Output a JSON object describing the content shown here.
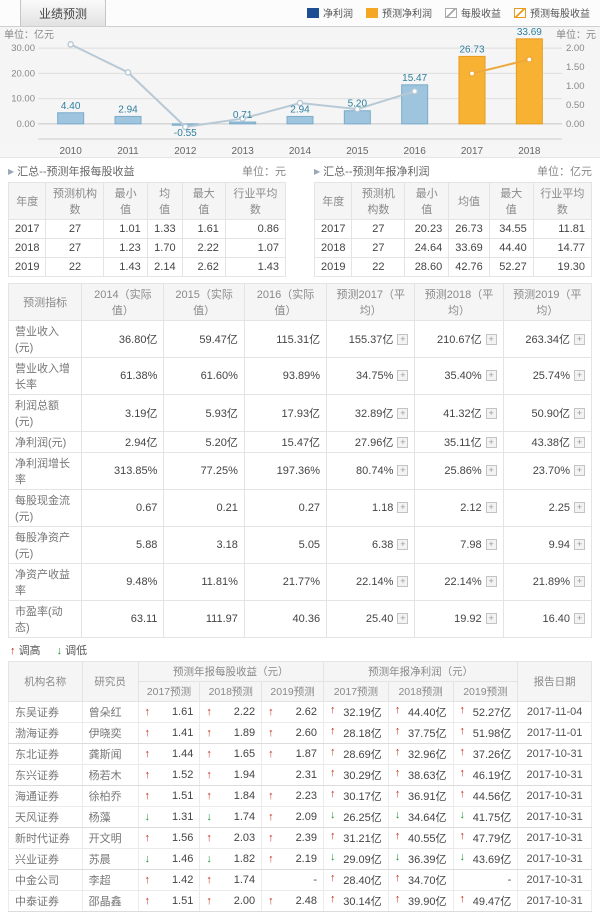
{
  "tab": {
    "label": "业绩预测"
  },
  "legend": [
    {
      "label": "净利润",
      "type": "bar",
      "color": "#1d4e94"
    },
    {
      "label": "预测净利润",
      "type": "bar",
      "color": "#f5a623"
    },
    {
      "label": "每股收益",
      "type": "line",
      "color": "#a9a9a9"
    },
    {
      "label": "预测每股收益",
      "type": "line",
      "color": "#e89c1e"
    }
  ],
  "chart_data": {
    "type": "bar+line combo",
    "categories": [
      "2010",
      "2011",
      "2012",
      "2013",
      "2014",
      "2015",
      "2016",
      "2017",
      "2018"
    ],
    "series": [
      {
        "name": "净利润",
        "type": "bar",
        "axis": "left",
        "color": "#9ec4de",
        "border": "#7aaccb",
        "values": [
          4.4,
          2.94,
          -0.55,
          0.71,
          2.94,
          5.2,
          15.47,
          null,
          null
        ]
      },
      {
        "name": "预测净利润",
        "type": "bar",
        "axis": "left",
        "color": "#f7b133",
        "border": "#e89c1e",
        "values": [
          null,
          null,
          null,
          null,
          null,
          null,
          null,
          26.73,
          33.69
        ]
      },
      {
        "name": "每股收益",
        "type": "line",
        "axis": "right",
        "color": "#b8c9d6",
        "values": [
          2.1,
          1.36,
          -0.08,
          0.14,
          0.55,
          0.39,
          0.86,
          null,
          null
        ]
      },
      {
        "name": "预测每股收益",
        "type": "line",
        "axis": "right",
        "color": "#eda93b",
        "values": [
          null,
          null,
          null,
          null,
          null,
          null,
          null,
          1.33,
          1.7
        ]
      }
    ],
    "bar_labels": [
      "4.40",
      "2.94",
      "-0.55",
      "0.71",
      "2.94",
      "5.20",
      "15.47",
      "26.73",
      "33.69"
    ],
    "left_axis": {
      "unit": "单位：亿元",
      "ticks": [
        0,
        10,
        20,
        30
      ],
      "min": -6,
      "max": 36
    },
    "right_axis": {
      "unit": "单位：元",
      "ticks": [
        0,
        0.5,
        1,
        1.5,
        2
      ],
      "min": -0.4,
      "max": 2.4
    },
    "grid": true,
    "legend_position": "top-right",
    "label_color": "#2e7f9f"
  },
  "eps_summary": {
    "title": "汇总--预测年报每股收益",
    "unit": "单位：元",
    "headers": [
      "年度",
      "预测机构数",
      "最小值",
      "均值",
      "最大值",
      "行业平均数"
    ],
    "rows": [
      [
        "2017",
        "27",
        "1.01",
        "1.33",
        "1.61",
        "0.86"
      ],
      [
        "2018",
        "27",
        "1.23",
        "1.70",
        "2.22",
        "1.07"
      ],
      [
        "2019",
        "22",
        "1.43",
        "2.14",
        "2.62",
        "1.43"
      ]
    ]
  },
  "np_summary": {
    "title": "汇总--预测年报净利润",
    "unit": "单位：亿元",
    "headers": [
      "年度",
      "预测机构数",
      "最小值",
      "均值",
      "最大值",
      "行业平均数"
    ],
    "rows": [
      [
        "2017",
        "27",
        "20.23",
        "26.73",
        "34.55",
        "11.81"
      ],
      [
        "2018",
        "27",
        "24.64",
        "33.69",
        "44.40",
        "14.77"
      ],
      [
        "2019",
        "22",
        "28.60",
        "42.76",
        "52.27",
        "19.30"
      ]
    ]
  },
  "indicators": {
    "headers": [
      "预测指标",
      "2014（实际值）",
      "2015（实际值）",
      "2016（实际值）",
      "预测2017（平均）",
      "预测2018（平均）",
      "预测2019（平均）"
    ],
    "expand_label": "+",
    "rows": [
      {
        "label": "营业收入(元)",
        "actual": [
          "36.80亿",
          "59.47亿",
          "115.31亿"
        ],
        "forecast": [
          "155.37亿",
          "210.67亿",
          "263.34亿"
        ]
      },
      {
        "label": "营业收入增长率",
        "actual": [
          "61.38%",
          "61.60%",
          "93.89%"
        ],
        "forecast": [
          "34.75%",
          "35.40%",
          "25.74%"
        ]
      },
      {
        "label": "利润总额(元)",
        "actual": [
          "3.19亿",
          "5.93亿",
          "17.93亿"
        ],
        "forecast": [
          "32.89亿",
          "41.32亿",
          "50.90亿"
        ]
      },
      {
        "label": "净利润(元)",
        "actual": [
          "2.94亿",
          "5.20亿",
          "15.47亿"
        ],
        "forecast": [
          "27.96亿",
          "35.11亿",
          "43.38亿"
        ]
      },
      {
        "label": "净利润增长率",
        "actual": [
          "313.85%",
          "77.25%",
          "197.36%"
        ],
        "forecast": [
          "80.74%",
          "25.86%",
          "23.70%"
        ]
      },
      {
        "label": "每股现金流(元)",
        "actual": [
          "0.67",
          "0.21",
          "0.27"
        ],
        "forecast": [
          "1.18",
          "2.12",
          "2.25"
        ]
      },
      {
        "label": "每股净资产(元)",
        "actual": [
          "5.88",
          "3.18",
          "5.05"
        ],
        "forecast": [
          "6.38",
          "7.98",
          "9.94"
        ]
      },
      {
        "label": "净资产收益率",
        "actual": [
          "9.48%",
          "11.81%",
          "21.77%"
        ],
        "forecast": [
          "22.14%",
          "22.14%",
          "21.89%"
        ]
      },
      {
        "label": "市盈率(动态)",
        "actual": [
          "63.11",
          "111.97",
          "40.36"
        ],
        "forecast": [
          "25.40",
          "19.92",
          "16.40"
        ]
      }
    ]
  },
  "updown_legend": {
    "up_label": "调高",
    "down_label": "调低"
  },
  "forecast_table": {
    "col_headers": {
      "org": "机构名称",
      "analyst": "研究员",
      "eps_group": "预测年报每股收益（元）",
      "np_group": "预测年报净利润（元）",
      "date": "报告日期",
      "years": [
        "2017预测",
        "2018预测",
        "2019预测"
      ]
    },
    "rows": [
      {
        "org": "东吴证券",
        "analyst": "曾朵红",
        "eps": [
          {
            "dir": "up",
            "v": "1.61"
          },
          {
            "dir": "up",
            "v": "2.22"
          },
          {
            "dir": "up",
            "v": "2.62"
          }
        ],
        "np": [
          {
            "dir": "up",
            "v": "32.19亿"
          },
          {
            "dir": "up",
            "v": "44.40亿"
          },
          {
            "dir": "up",
            "v": "52.27亿"
          }
        ],
        "date": "2017-11-04"
      },
      {
        "org": "渤海证券",
        "analyst": "伊晓奕",
        "eps": [
          {
            "dir": "up",
            "v": "1.41"
          },
          {
            "dir": "up",
            "v": "1.89"
          },
          {
            "dir": "up",
            "v": "2.60"
          }
        ],
        "np": [
          {
            "dir": "up",
            "v": "28.18亿"
          },
          {
            "dir": "up",
            "v": "37.75亿"
          },
          {
            "dir": "up",
            "v": "51.98亿"
          }
        ],
        "date": "2017-11-01"
      },
      {
        "org": "东北证券",
        "analyst": "龚斯闻",
        "eps": [
          {
            "dir": "up",
            "v": "1.44"
          },
          {
            "dir": "up",
            "v": "1.65"
          },
          {
            "dir": "up",
            "v": "1.87"
          }
        ],
        "np": [
          {
            "dir": "up",
            "v": "28.69亿"
          },
          {
            "dir": "up",
            "v": "32.96亿"
          },
          {
            "dir": "up",
            "v": "37.26亿"
          }
        ],
        "date": "2017-10-31"
      },
      {
        "org": "东兴证券",
        "analyst": "杨若木",
        "eps": [
          {
            "dir": "up",
            "v": "1.52"
          },
          {
            "dir": "up",
            "v": "1.94"
          },
          {
            "dir": "none",
            "v": "2.31"
          }
        ],
        "np": [
          {
            "dir": "up",
            "v": "30.29亿"
          },
          {
            "dir": "up",
            "v": "38.63亿"
          },
          {
            "dir": "up",
            "v": "46.19亿"
          }
        ],
        "date": "2017-10-31"
      },
      {
        "org": "海通证券",
        "analyst": "徐柏乔",
        "eps": [
          {
            "dir": "up",
            "v": "1.51"
          },
          {
            "dir": "up",
            "v": "1.84"
          },
          {
            "dir": "up",
            "v": "2.23"
          }
        ],
        "np": [
          {
            "dir": "up",
            "v": "30.17亿"
          },
          {
            "dir": "up",
            "v": "36.91亿"
          },
          {
            "dir": "up",
            "v": "44.56亿"
          }
        ],
        "date": "2017-10-31"
      },
      {
        "org": "天风证券",
        "analyst": "杨藻",
        "eps": [
          {
            "dir": "down",
            "v": "1.31"
          },
          {
            "dir": "down",
            "v": "1.74"
          },
          {
            "dir": "up",
            "v": "2.09"
          }
        ],
        "np": [
          {
            "dir": "down",
            "v": "26.25亿"
          },
          {
            "dir": "down",
            "v": "34.64亿"
          },
          {
            "dir": "down",
            "v": "41.75亿"
          }
        ],
        "date": "2017-10-31"
      },
      {
        "org": "新时代证券",
        "analyst": "开文明",
        "eps": [
          {
            "dir": "up",
            "v": "1.56"
          },
          {
            "dir": "up",
            "v": "2.03"
          },
          {
            "dir": "up",
            "v": "2.39"
          }
        ],
        "np": [
          {
            "dir": "up",
            "v": "31.21亿"
          },
          {
            "dir": "up",
            "v": "40.55亿"
          },
          {
            "dir": "up",
            "v": "47.79亿"
          }
        ],
        "date": "2017-10-31"
      },
      {
        "org": "兴业证券",
        "analyst": "苏晨",
        "eps": [
          {
            "dir": "down",
            "v": "1.46"
          },
          {
            "dir": "down",
            "v": "1.82"
          },
          {
            "dir": "up",
            "v": "2.19"
          }
        ],
        "np": [
          {
            "dir": "down",
            "v": "29.09亿"
          },
          {
            "dir": "down",
            "v": "36.39亿"
          },
          {
            "dir": "down",
            "v": "43.69亿"
          }
        ],
        "date": "2017-10-31"
      },
      {
        "org": "中金公司",
        "analyst": "李超",
        "eps": [
          {
            "dir": "up",
            "v": "1.42"
          },
          {
            "dir": "up",
            "v": "1.74"
          },
          {
            "dir": "none",
            "v": "-"
          }
        ],
        "np": [
          {
            "dir": "up",
            "v": "28.40亿"
          },
          {
            "dir": "up",
            "v": "34.70亿"
          },
          {
            "dir": "none",
            "v": "-"
          }
        ],
        "date": "2017-10-31"
      },
      {
        "org": "中泰证券",
        "analyst": "邵晶鑫",
        "eps": [
          {
            "dir": "up",
            "v": "1.51"
          },
          {
            "dir": "up",
            "v": "2.00"
          },
          {
            "dir": "up",
            "v": "2.48"
          }
        ],
        "np": [
          {
            "dir": "up",
            "v": "30.14亿"
          },
          {
            "dir": "up",
            "v": "39.90亿"
          },
          {
            "dir": "up",
            "v": "49.47亿"
          }
        ],
        "date": "2017-10-31"
      }
    ]
  }
}
